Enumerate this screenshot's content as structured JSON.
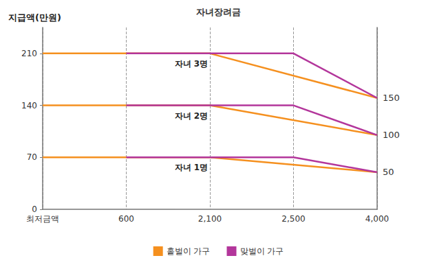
{
  "chart_data": {
    "type": "line",
    "title": "자녀장려금",
    "y_label": "지급액(만원)",
    "categories": [
      "최저금액",
      "600",
      "2,100",
      "2,500",
      "4,000"
    ],
    "series": [
      {
        "name": "홑벌이 가구",
        "group": "자녀 3명",
        "color": "#f5901f",
        "values": [
          210,
          210,
          210,
          null,
          150
        ]
      },
      {
        "name": "맞벌이 가구",
        "group": "자녀 3명",
        "color": "#b3369b",
        "values": [
          null,
          210,
          210,
          210,
          150
        ]
      },
      {
        "name": "홑벌이 가구",
        "group": "자녀 2명",
        "color": "#f5901f",
        "values": [
          140,
          140,
          140,
          null,
          100
        ]
      },
      {
        "name": "맞벌이 가구",
        "group": "자녀 2명",
        "color": "#b3369b",
        "values": [
          null,
          140,
          140,
          140,
          100
        ]
      },
      {
        "name": "홑벌이 가구",
        "group": "자녀 1명",
        "color": "#f5901f",
        "values": [
          70,
          70,
          70,
          null,
          50
        ]
      },
      {
        "name": "맞벌이 가구",
        "group": "자녀 1명",
        "color": "#b3369b",
        "values": [
          null,
          70,
          70,
          70,
          50
        ]
      }
    ],
    "ylim": [
      0,
      245
    ],
    "yticks": [
      0,
      70,
      140,
      210
    ],
    "y2lim": [
      0,
      245
    ],
    "y2ticks": [
      50,
      100,
      150
    ],
    "grid": true,
    "legend": "bottom"
  }
}
